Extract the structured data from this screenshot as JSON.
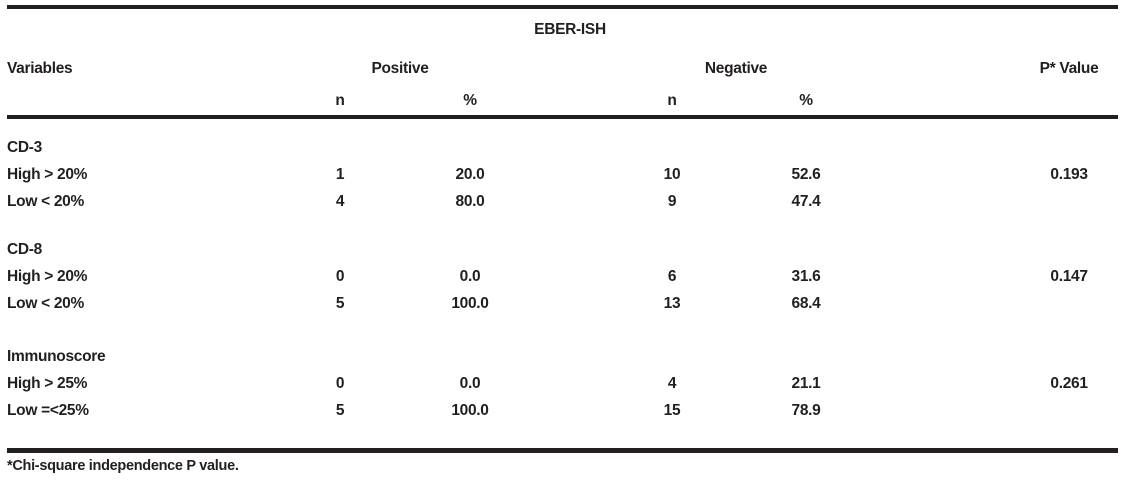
{
  "table": {
    "title": "EBER-ISH",
    "columns": {
      "variables": "Variables",
      "positive_group": "Positive",
      "negative_group": "Negative",
      "p_value": "P* Value",
      "n": "n",
      "pct": "%"
    },
    "sections": [
      {
        "name": "CD-3",
        "rows": [
          {
            "label": "High > 20%",
            "pos_n": "1",
            "pos_pct": "20.0",
            "neg_n": "10",
            "neg_pct": "52.6",
            "p": "0.193"
          },
          {
            "label": "Low < 20%",
            "pos_n": "4",
            "pos_pct": "80.0",
            "neg_n": "9",
            "neg_pct": "47.4",
            "p": ""
          }
        ]
      },
      {
        "name": "CD-8",
        "rows": [
          {
            "label": "High > 20%",
            "pos_n": "0",
            "pos_pct": "0.0",
            "neg_n": "6",
            "neg_pct": "31.6",
            "p": "0.147"
          },
          {
            "label": "Low < 20%",
            "pos_n": "5",
            "pos_pct": "100.0",
            "neg_n": "13",
            "neg_pct": "68.4",
            "p": ""
          }
        ]
      },
      {
        "name": "Immunoscore",
        "rows": [
          {
            "label": "High > 25%",
            "pos_n": "0",
            "pos_pct": "0.0",
            "neg_n": "4",
            "neg_pct": "21.1",
            "p": "0.261"
          },
          {
            "label": "Low =<25%",
            "pos_n": "5",
            "pos_pct": "100.0",
            "neg_n": "15",
            "neg_pct": "78.9",
            "p": ""
          }
        ]
      }
    ],
    "footnote": "*Chi-square independence P value."
  },
  "colors": {
    "text": "#231f20",
    "rule": "#231f20",
    "background": "#ffffff"
  }
}
